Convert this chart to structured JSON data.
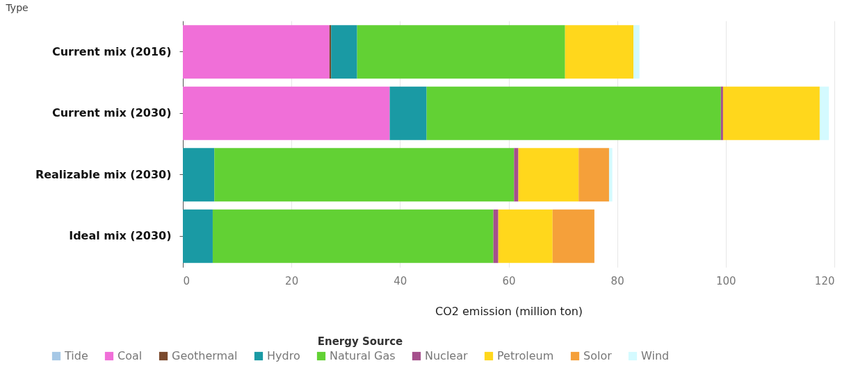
{
  "chart_data": {
    "type": "bar",
    "orientation": "horizontal",
    "stacked": true,
    "xlabel": "CO2 emission (million ton)",
    "ylabel": "Type",
    "legend_title": "Energy Source",
    "legend": "bottom",
    "grid": "x",
    "categories": [
      "Current mix (2016)",
      "Current mix (2030)",
      "Realizable mix (2030)",
      "Ideal mix (2030)"
    ],
    "xlim": [
      0,
      120
    ],
    "xticks": [
      0,
      20,
      40,
      60,
      80,
      100,
      120
    ],
    "series": [
      {
        "name": "Tide",
        "color": "#a6c8e6",
        "values": [
          null,
          null,
          null,
          null
        ]
      },
      {
        "name": "Coal",
        "color": "#f06fd8",
        "values": [
          27,
          38.1,
          null,
          null
        ]
      },
      {
        "name": "Geothermal",
        "color": "#7b4a2e",
        "values": [
          0.3,
          null,
          null,
          null
        ]
      },
      {
        "name": "Hydro",
        "color": "#1a9aa4",
        "values": [
          4.8,
          6.8,
          5.8,
          5.5
        ]
      },
      {
        "name": "Natural Gas",
        "color": "#62d134",
        "values": [
          38.3,
          54.2,
          55.2,
          51.7
        ]
      },
      {
        "name": "Nuclear",
        "color": "#a5508c",
        "values": [
          null,
          0.4,
          0.8,
          0.9
        ]
      },
      {
        "name": "Petroleum",
        "color": "#ffd71c",
        "values": [
          12.6,
          17.8,
          11.1,
          10.0
        ]
      },
      {
        "name": "Solor",
        "color": "#f5a03a",
        "values": [
          null,
          null,
          5.6,
          7.7
        ]
      },
      {
        "name": "Wind",
        "color": "#d4faff",
        "values": [
          1.1,
          1.7,
          0.6,
          null
        ]
      }
    ]
  }
}
